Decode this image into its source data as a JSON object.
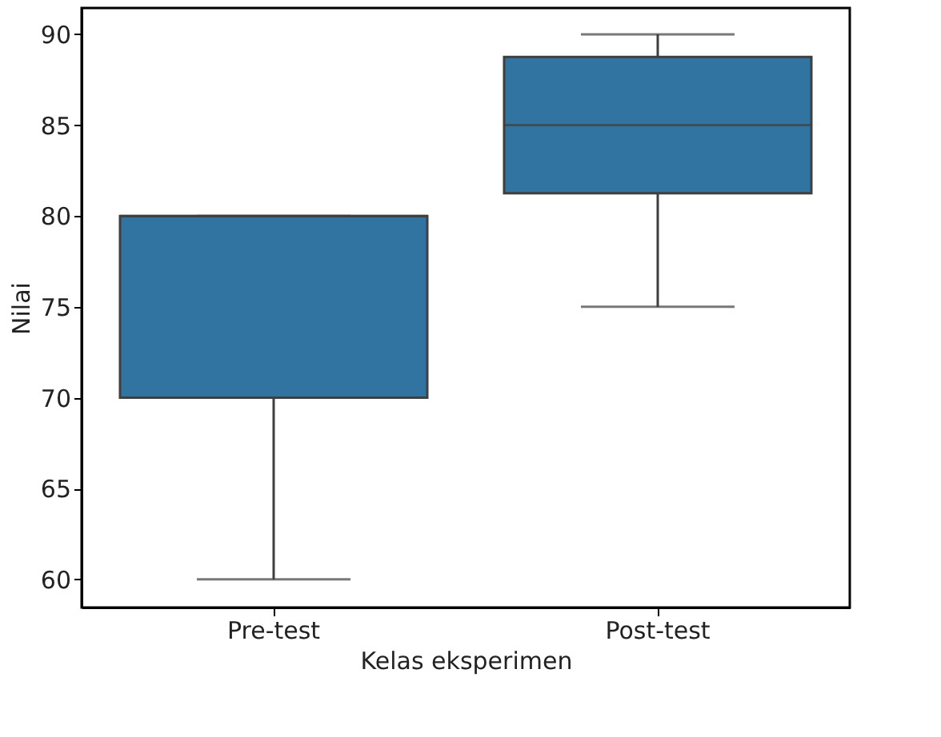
{
  "chart_data": {
    "type": "box",
    "xlabel": "Kelas eksperimen",
    "ylabel": "Nilai",
    "categories": [
      "Pre-test",
      "Post-test"
    ],
    "series": [
      {
        "color": "#3274a1",
        "boxes": [
          {
            "low": 60,
            "q1": 70,
            "median": 80,
            "q3": 80,
            "high": 80
          },
          {
            "low": 75,
            "q1": 81.25,
            "median": 85,
            "q3": 88.75,
            "high": 90
          }
        ]
      }
    ],
    "ylim": [
      58.45,
      91.45
    ],
    "yticks": [
      60,
      65,
      70,
      75,
      80,
      85,
      90
    ],
    "grid": false
  }
}
